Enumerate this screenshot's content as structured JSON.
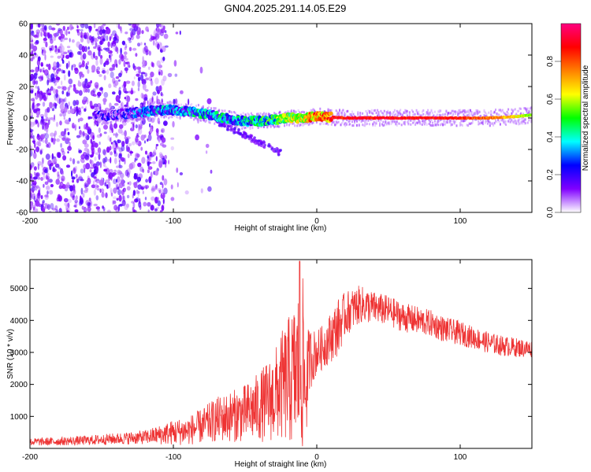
{
  "title": "GN04.2025.291.14.05.E29",
  "chart_data": [
    {
      "type": "heatmap",
      "title": "GN04.2025.291.14.05.E29",
      "xlabel": "Height of straight line (km)",
      "ylabel": "Frequency (Hz)",
      "xlim": [
        -200,
        150
      ],
      "ylim": [
        -60,
        60
      ],
      "x_ticks": [
        -200,
        -100,
        0,
        100
      ],
      "x_tick_labels": [
        "-200",
        "-100",
        "0",
        "100"
      ],
      "y_ticks": [
        -60,
        -40,
        -20,
        0,
        20,
        40,
        60
      ],
      "y_tick_labels": [
        "-60",
        "-40",
        "-20",
        "0",
        "20",
        "40",
        "60"
      ],
      "ridge": {
        "description": "dominant frequency ridge vs height",
        "x": [
          -150,
          -140,
          -130,
          -120,
          -110,
          -100,
          -90,
          -80,
          -70,
          -60,
          -50,
          -40,
          -30,
          -20,
          -10,
          0,
          20,
          50,
          80,
          100,
          120,
          140,
          150
        ],
        "y": [
          1,
          2,
          3,
          4,
          5,
          5,
          4,
          3,
          1,
          -1,
          -2,
          -2,
          -1,
          0,
          0,
          1,
          0,
          0,
          0,
          0,
          0,
          1,
          2
        ],
        "amplitude": [
          0.25,
          0.3,
          0.35,
          0.4,
          0.45,
          0.45,
          0.45,
          0.5,
          0.5,
          0.5,
          0.5,
          0.55,
          0.6,
          0.7,
          0.8,
          0.9,
          0.95,
          0.95,
          0.95,
          0.9,
          0.85,
          0.7,
          0.6
        ]
      },
      "scatter_noise_xrange": [
        -200,
        -105
      ],
      "colorbar": {
        "label": "Normalized spectral amplitude",
        "range": [
          0,
          1
        ],
        "ticks": [
          0.0,
          0.2,
          0.4,
          0.6,
          0.8
        ],
        "tick_labels": [
          "0.0",
          "0.2",
          "0.4",
          "0.6",
          "0.8"
        ],
        "colors": [
          "#ffffff",
          "#8000ff",
          "#0000ff",
          "#00ffff",
          "#00ff00",
          "#ffff00",
          "#ff8000",
          "#ff0000",
          "#ff0080"
        ]
      }
    },
    {
      "type": "line",
      "xlabel": "Height of straight line (km)",
      "ylabel": "SNR (10 * v/v)",
      "xlim": [
        -200,
        150
      ],
      "ylim": [
        0,
        5900
      ],
      "x_ticks": [
        -200,
        -100,
        0,
        100
      ],
      "x_tick_labels": [
        "-200",
        "-100",
        "0",
        "100"
      ],
      "y_ticks": [
        1000,
        2000,
        3000,
        4000,
        5000
      ],
      "y_tick_labels": [
        "1000",
        "2000",
        "3000",
        "4000",
        "5000"
      ],
      "series": [
        {
          "name": "SNR",
          "color": "#ee3333",
          "x": [
            -200,
            -180,
            -160,
            -140,
            -120,
            -110,
            -100,
            -90,
            -80,
            -70,
            -60,
            -50,
            -40,
            -30,
            -25,
            -20,
            -15,
            -12,
            -10,
            -8,
            -5,
            0,
            5,
            10,
            15,
            20,
            30,
            40,
            50,
            60,
            70,
            80,
            90,
            100,
            110,
            120,
            130,
            140,
            150
          ],
          "mean": [
            200,
            220,
            250,
            300,
            350,
            420,
            500,
            550,
            700,
            900,
            1000,
            1100,
            1300,
            1600,
            1900,
            2100,
            2300,
            2600,
            2700,
            1800,
            2800,
            3000,
            3200,
            3500,
            3800,
            4200,
            4500,
            4400,
            4300,
            4100,
            4000,
            3900,
            3700,
            3600,
            3450,
            3300,
            3200,
            3150,
            3100
          ],
          "spread": [
            120,
            130,
            150,
            180,
            220,
            300,
            400,
            450,
            550,
            700,
            800,
            900,
            1100,
            1400,
            1700,
            2000,
            2300,
            2800,
            2900,
            1900,
            1000,
            700,
            700,
            800,
            900,
            700,
            600,
            500,
            480,
            460,
            440,
            420,
            400,
            380,
            350,
            330,
            320,
            300,
            280
          ],
          "peak": {
            "x": -12,
            "y": 5850
          }
        }
      ]
    }
  ]
}
